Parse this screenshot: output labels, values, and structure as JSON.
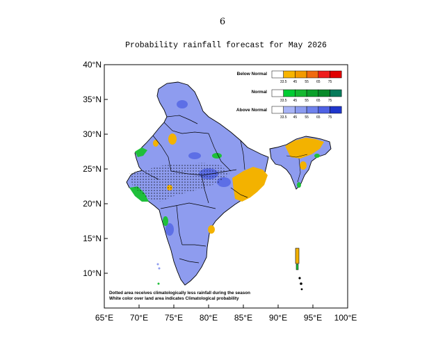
{
  "page_number": "6",
  "title": "Probability rainfall forecast for May 2026",
  "axes": {
    "lat_labels": [
      "40°N",
      "35°N",
      "30°N",
      "25°N",
      "20°N",
      "15°N",
      "10°N"
    ],
    "lon_labels": [
      "65°E",
      "70°E",
      "75°E",
      "80°E",
      "85°E",
      "90°E",
      "95°E",
      "100°E"
    ]
  },
  "legend": {
    "ticks": [
      "33.5",
      "45",
      "55",
      "65",
      "75"
    ],
    "groups": [
      {
        "label": "Below Normal",
        "colors": [
          "#ffffff",
          "#f7b400",
          "#f39a00",
          "#f06a10",
          "#ee1c1c",
          "#e00000"
        ]
      },
      {
        "label": "Normal",
        "colors": [
          "#ffffff",
          "#00cc33",
          "#14b830",
          "#0aa02a",
          "#078a2a",
          "#057a5a"
        ]
      },
      {
        "label": "Above Normal",
        "colors": [
          "#ffffff",
          "#a8b4f6",
          "#8c9cf0",
          "#6f82ec",
          "#4f62e4",
          "#1f36cc"
        ]
      }
    ]
  },
  "notes": {
    "line1": "Dotted area receives climatologically less rainfall during the season",
    "line2": "White color over land area indicates Climatological probability"
  },
  "colors": {
    "above": "#8e9cef",
    "above_dark": "#5d6fe6",
    "normal": "#1fbf3a",
    "below": "#f3b200"
  }
}
